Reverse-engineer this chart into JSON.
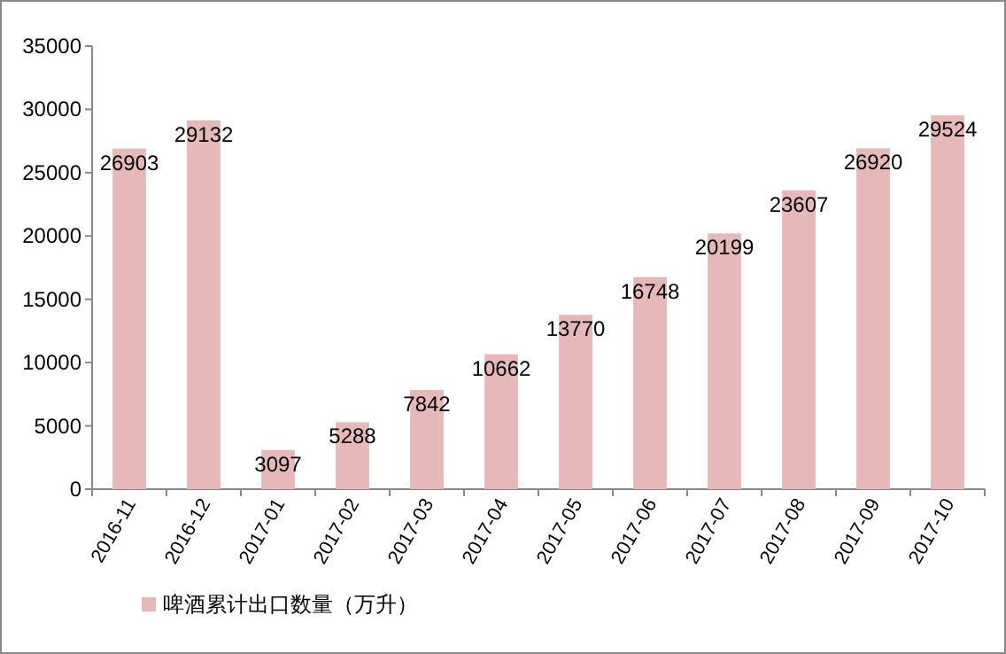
{
  "chart_data": {
    "type": "bar",
    "categories": [
      "2016-11",
      "2016-12",
      "2017-01",
      "2017-02",
      "2017-03",
      "2017-04",
      "2017-05",
      "2017-06",
      "2017-07",
      "2017-08",
      "2017-09",
      "2017-10"
    ],
    "series": [
      {
        "name": "啤酒累计出口数量（万升）",
        "color": "#e6b9b8",
        "values": [
          26903,
          29132,
          3097,
          5288,
          7842,
          10662,
          13770,
          16748,
          20199,
          23607,
          26920,
          29524
        ]
      }
    ],
    "ylim": [
      0,
      35000
    ],
    "yticks": [
      0,
      5000,
      10000,
      15000,
      20000,
      25000,
      30000,
      35000
    ],
    "data_labels": true,
    "legend": "bottom",
    "grid": false
  }
}
